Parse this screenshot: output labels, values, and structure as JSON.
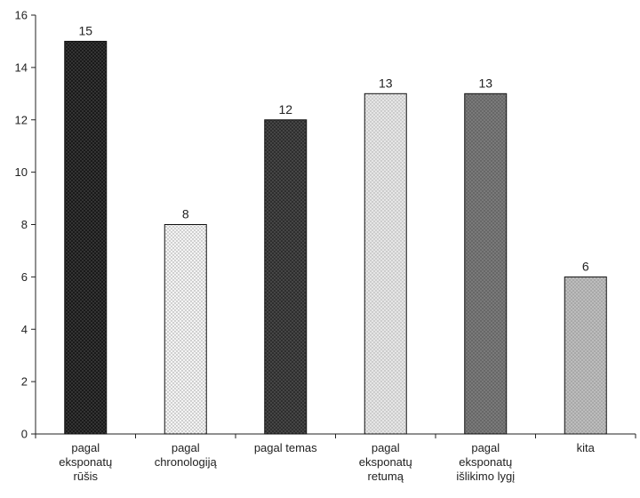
{
  "chart_data": {
    "type": "bar",
    "title": "",
    "xlabel": "",
    "ylabel": "",
    "ylim": [
      0,
      16
    ],
    "yticks": [
      0,
      2,
      4,
      6,
      8,
      10,
      12,
      14,
      16
    ],
    "grid": false,
    "legend": "none",
    "categories": [
      "pagal eksponatų rūšis",
      "pagal chronologiją",
      "pagal temas",
      "pagal eksponatų retumą",
      "pagal eksponatų išlikimo lygį",
      "kita"
    ],
    "category_lines": [
      [
        "pagal",
        "eksponatų",
        "rūšis"
      ],
      [
        "pagal",
        "chronologiją"
      ],
      [
        "pagal temas"
      ],
      [
        "pagal",
        "eksponatų",
        "retumą"
      ],
      [
        "pagal",
        "eksponatų",
        "išlikimo lygį"
      ],
      [
        "kita"
      ]
    ],
    "values": [
      15,
      8,
      12,
      13,
      13,
      6
    ],
    "data_labels": [
      "15",
      "8",
      "12",
      "13",
      "13",
      "6"
    ],
    "bar_fills": [
      "#1a1a1a",
      "#f4f4f4",
      "#2e2e2e",
      "#e6e6e6",
      "#7a7a7a",
      "#a8a8a8"
    ],
    "bar_dots": [
      "#5a5a5a",
      "#9a9a9a",
      "#6a6a6a",
      "#a6a6a6",
      "#4a4a4a",
      "#dcdcdc"
    ],
    "axis_color": "#222222"
  }
}
